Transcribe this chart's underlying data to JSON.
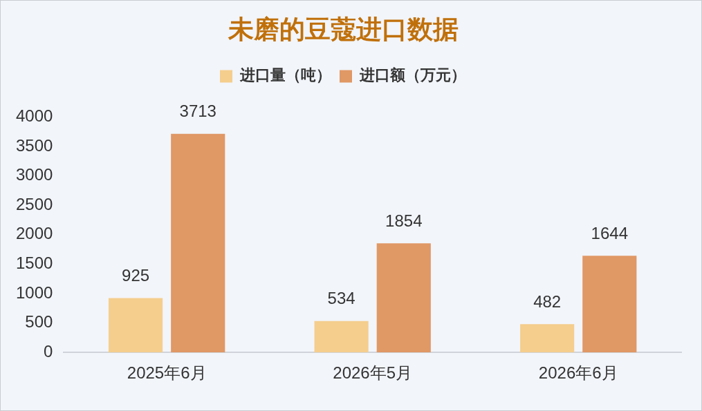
{
  "chart_data": {
    "type": "bar",
    "title": "未磨的豆蔻进口数据",
    "categories": [
      "2025年6月",
      "2026年5月",
      "2026年6月"
    ],
    "series": [
      {
        "name": "进口量（吨）",
        "color": "#f5ce8d",
        "values": [
          925,
          534,
          482
        ]
      },
      {
        "name": "进口额（万元）",
        "color": "#e09865",
        "values": [
          3713,
          1854,
          1644
        ]
      }
    ],
    "ylim": [
      0,
      4000
    ],
    "yticks": [
      0,
      500,
      1000,
      1500,
      2000,
      2500,
      3000,
      3500,
      4000
    ],
    "legend": "top",
    "data_labels": true
  }
}
